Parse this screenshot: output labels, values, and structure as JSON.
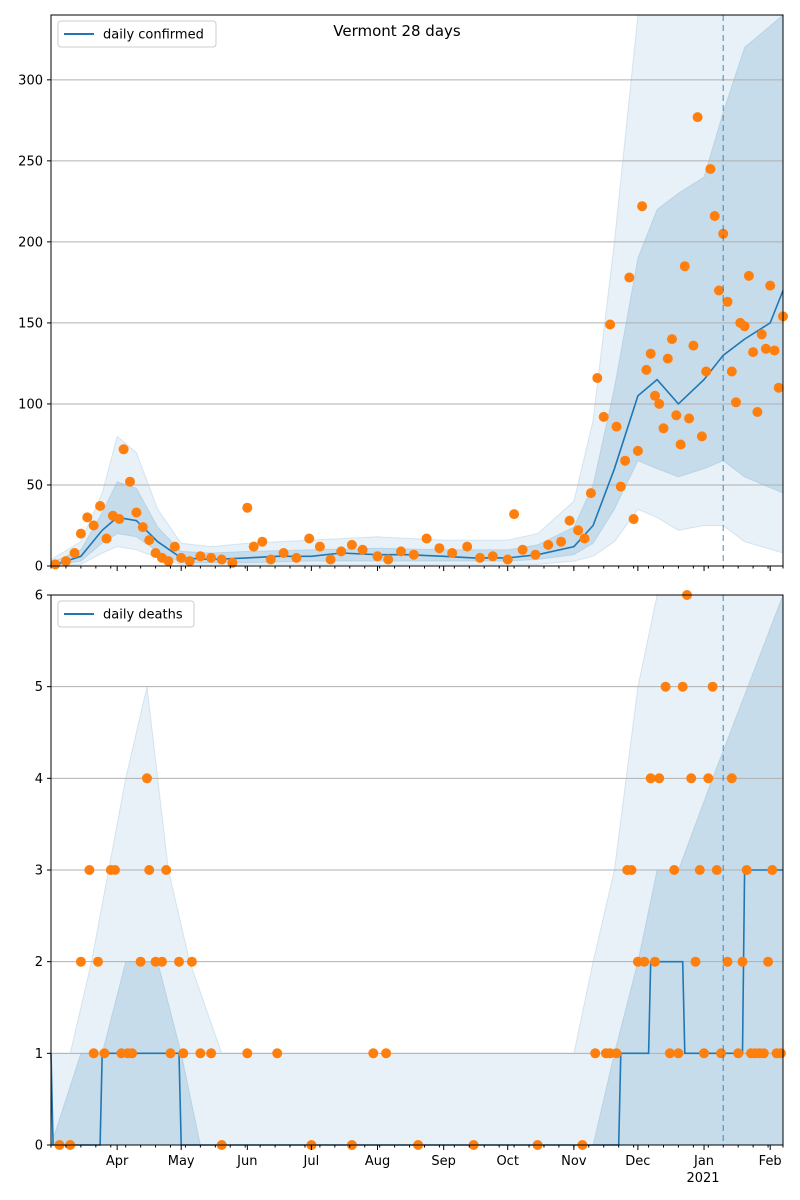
{
  "figure": {
    "title": "Vermont 28 days"
  },
  "colors": {
    "line": "#1f77b4",
    "band": "#1f77b4",
    "points": "#ff7f0e",
    "grid": "#b0b0b0"
  },
  "x_axis": {
    "start_date": "2020-03-01",
    "end_date": "2021-02-07",
    "month_ticks": [
      {
        "date": "2020-04-01",
        "label": "Apr"
      },
      {
        "date": "2020-05-01",
        "label": "May"
      },
      {
        "date": "2020-06-01",
        "label": "Jun"
      },
      {
        "date": "2020-07-01",
        "label": "Jul"
      },
      {
        "date": "2020-08-01",
        "label": "Aug"
      },
      {
        "date": "2020-09-01",
        "label": "Sep"
      },
      {
        "date": "2020-10-01",
        "label": "Oct"
      },
      {
        "date": "2020-11-01",
        "label": "Nov"
      },
      {
        "date": "2020-12-01",
        "label": "Dec"
      },
      {
        "date": "2021-01-01",
        "label": "Jan"
      },
      {
        "date": "2021-02-01",
        "label": "Feb"
      }
    ],
    "year_label": "2021",
    "forecast_start": "2021-01-10"
  },
  "chart_data": [
    {
      "type": "line",
      "title": "Vermont 28 days",
      "ylim": [
        0,
        340
      ],
      "yticks": [
        0,
        50,
        100,
        150,
        200,
        250,
        300
      ],
      "legend": "top-left",
      "grid": true,
      "series": [
        {
          "name": "daily confirmed",
          "type": "line",
          "x": [
            "2020-03-01",
            "2020-03-15",
            "2020-03-25",
            "2020-04-01",
            "2020-04-10",
            "2020-04-20",
            "2020-05-01",
            "2020-05-15",
            "2020-06-01",
            "2020-06-15",
            "2020-07-01",
            "2020-07-15",
            "2020-08-01",
            "2020-08-15",
            "2020-09-01",
            "2020-09-15",
            "2020-10-01",
            "2020-10-15",
            "2020-11-01",
            "2020-11-10",
            "2020-11-20",
            "2020-12-01",
            "2020-12-10",
            "2020-12-20",
            "2021-01-01",
            "2021-01-10",
            "2021-01-20",
            "2021-02-01",
            "2021-02-07"
          ],
          "y": [
            0,
            6,
            22,
            30,
            28,
            15,
            5,
            4,
            5,
            6,
            6,
            8,
            7,
            7,
            6,
            5,
            5,
            7,
            12,
            25,
            60,
            105,
            115,
            100,
            115,
            130,
            140,
            150,
            170
          ]
        },
        {
          "name": "",
          "type": "band",
          "x": [
            "2020-03-01",
            "2020-03-15",
            "2020-03-25",
            "2020-04-01",
            "2020-04-10",
            "2020-04-20",
            "2020-05-01",
            "2020-05-15",
            "2020-06-01",
            "2020-07-01",
            "2020-08-01",
            "2020-09-01",
            "2020-10-01",
            "2020-10-15",
            "2020-11-01",
            "2020-11-10",
            "2020-11-20",
            "2020-12-01",
            "2020-12-10",
            "2020-12-20",
            "2021-01-01",
            "2021-01-10",
            "2021-01-20",
            "2021-02-07"
          ],
          "lower": [
            0,
            1,
            8,
            12,
            10,
            5,
            1,
            1,
            1,
            1,
            1,
            1,
            1,
            1,
            3,
            6,
            15,
            35,
            30,
            22,
            25,
            25,
            15,
            8
          ],
          "upper": [
            4,
            15,
            45,
            80,
            70,
            35,
            14,
            12,
            14,
            16,
            18,
            16,
            16,
            20,
            40,
            90,
            200,
            340,
            340,
            340,
            340,
            340,
            340,
            340
          ]
        },
        {
          "name": "",
          "type": "band",
          "x": [
            "2020-03-01",
            "2020-03-15",
            "2020-03-25",
            "2020-04-01",
            "2020-04-10",
            "2020-04-20",
            "2020-05-01",
            "2020-05-15",
            "2020-06-01",
            "2020-07-01",
            "2020-08-01",
            "2020-09-01",
            "2020-10-01",
            "2020-10-15",
            "2020-11-01",
            "2020-11-10",
            "2020-11-20",
            "2020-12-01",
            "2020-12-10",
            "2020-12-20",
            "2021-01-01",
            "2021-01-10",
            "2021-01-20",
            "2021-02-07"
          ],
          "lower": [
            0,
            3,
            14,
            20,
            18,
            9,
            2,
            2,
            2,
            3,
            3,
            3,
            3,
            4,
            7,
            14,
            35,
            65,
            60,
            55,
            60,
            65,
            55,
            45
          ],
          "upper": [
            2,
            10,
            33,
            52,
            48,
            24,
            9,
            8,
            9,
            10,
            11,
            10,
            10,
            13,
            24,
            50,
            110,
            190,
            220,
            230,
            240,
            280,
            320,
            340
          ]
        },
        {
          "name": "",
          "type": "scatter",
          "x": [
            "2020-03-03",
            "2020-03-08",
            "2020-03-12",
            "2020-03-15",
            "2020-03-18",
            "2020-03-21",
            "2020-03-24",
            "2020-03-27",
            "2020-03-30",
            "2020-04-02",
            "2020-04-04",
            "2020-04-07",
            "2020-04-10",
            "2020-04-13",
            "2020-04-16",
            "2020-04-19",
            "2020-04-22",
            "2020-04-25",
            "2020-04-28",
            "2020-05-01",
            "2020-05-05",
            "2020-05-10",
            "2020-05-15",
            "2020-05-20",
            "2020-05-25",
            "2020-06-01",
            "2020-06-04",
            "2020-06-08",
            "2020-06-12",
            "2020-06-18",
            "2020-06-24",
            "2020-06-30",
            "2020-07-05",
            "2020-07-10",
            "2020-07-15",
            "2020-07-20",
            "2020-07-25",
            "2020-08-01",
            "2020-08-06",
            "2020-08-12",
            "2020-08-18",
            "2020-08-24",
            "2020-08-30",
            "2020-09-05",
            "2020-09-12",
            "2020-09-18",
            "2020-09-24",
            "2020-10-01",
            "2020-10-04",
            "2020-10-08",
            "2020-10-14",
            "2020-10-20",
            "2020-10-26",
            "2020-10-30",
            "2020-11-03",
            "2020-11-06",
            "2020-11-09",
            "2020-11-12",
            "2020-11-15",
            "2020-11-18",
            "2020-11-21",
            "2020-11-23",
            "2020-11-25",
            "2020-11-27",
            "2020-11-29",
            "2020-12-01",
            "2020-12-03",
            "2020-12-05",
            "2020-12-07",
            "2020-12-09",
            "2020-12-11",
            "2020-12-13",
            "2020-12-15",
            "2020-12-17",
            "2020-12-19",
            "2020-12-21",
            "2020-12-23",
            "2020-12-25",
            "2020-12-27",
            "2020-12-29",
            "2020-12-31",
            "2021-01-02",
            "2021-01-04",
            "2021-01-06",
            "2021-01-08",
            "2021-01-10",
            "2021-01-12",
            "2021-01-14",
            "2021-01-16",
            "2021-01-18",
            "2021-01-20",
            "2021-01-22",
            "2021-01-24",
            "2021-01-26",
            "2021-01-28",
            "2021-01-30",
            "2021-02-01",
            "2021-02-03",
            "2021-02-05",
            "2021-02-07"
          ],
          "y": [
            1,
            3,
            8,
            20,
            30,
            25,
            37,
            17,
            31,
            29,
            72,
            52,
            33,
            24,
            16,
            8,
            5,
            3,
            12,
            5,
            3,
            6,
            5,
            4,
            2,
            36,
            12,
            15,
            4,
            8,
            5,
            17,
            12,
            4,
            9,
            13,
            10,
            6,
            4,
            9,
            7,
            17,
            11,
            8,
            12,
            5,
            6,
            4,
            32,
            10,
            7,
            13,
            15,
            28,
            22,
            17,
            45,
            116,
            92,
            149,
            86,
            49,
            65,
            178,
            29,
            71,
            222,
            121,
            131,
            105,
            100,
            85,
            128,
            140,
            93,
            75,
            185,
            91,
            136,
            277,
            80,
            120,
            245,
            216,
            170,
            205,
            163,
            120,
            101,
            150,
            148,
            179,
            132,
            95,
            143,
            134,
            173,
            133,
            110,
            154
          ]
        }
      ]
    },
    {
      "type": "line",
      "title": "",
      "ylim": [
        0,
        6
      ],
      "yticks": [
        0,
        1,
        2,
        3,
        4,
        5,
        6
      ],
      "legend": "top-left",
      "grid": true,
      "series": [
        {
          "name": "daily deaths",
          "type": "line",
          "x": [
            "2020-03-01",
            "2020-03-02",
            "2020-03-24",
            "2020-03-25",
            "2020-04-30",
            "2020-05-01",
            "2020-11-22",
            "2020-11-23",
            "2020-12-06",
            "2020-12-07",
            "2020-12-22",
            "2020-12-23",
            "2021-01-19",
            "2021-01-20",
            "2021-02-07"
          ],
          "y": [
            1,
            0,
            0,
            1,
            1,
            0,
            0,
            1,
            1,
            2,
            2,
            1,
            1,
            3,
            3
          ]
        },
        {
          "name": "",
          "type": "band",
          "x": [
            "2020-03-01",
            "2020-03-10",
            "2020-03-20",
            "2020-04-05",
            "2020-04-15",
            "2020-04-25",
            "2020-05-05",
            "2020-05-20",
            "2020-06-01",
            "2020-11-01",
            "2020-11-10",
            "2020-11-20",
            "2020-12-01",
            "2020-12-10",
            "2021-02-07"
          ],
          "lower": [
            0,
            0,
            0,
            0,
            0,
            0,
            0,
            0,
            0,
            0,
            0,
            0,
            0,
            0,
            0
          ],
          "upper": [
            1,
            1,
            2,
            4,
            5,
            3,
            2,
            1,
            1,
            1,
            2,
            3,
            5,
            6,
            6
          ]
        },
        {
          "name": "",
          "type": "band",
          "x": [
            "2020-03-01",
            "2020-03-15",
            "2020-03-25",
            "2020-04-05",
            "2020-04-20",
            "2020-05-01",
            "2020-05-10",
            "2020-11-10",
            "2020-11-20",
            "2020-12-01",
            "2020-12-10",
            "2020-12-20",
            "2021-01-05",
            "2021-02-07"
          ],
          "lower": [
            0,
            0,
            0,
            0,
            0,
            0,
            0,
            0,
            0,
            0,
            0,
            0,
            0,
            0
          ],
          "upper": [
            0,
            1,
            1,
            2,
            2,
            1,
            0,
            0,
            1,
            2,
            3,
            3,
            4,
            6
          ]
        },
        {
          "name": "",
          "type": "scatter",
          "x": [
            "2020-03-05",
            "2020-03-10",
            "2020-03-15",
            "2020-03-19",
            "2020-03-21",
            "2020-03-23",
            "2020-03-26",
            "2020-03-29",
            "2020-03-31",
            "2020-04-03",
            "2020-04-06",
            "2020-04-08",
            "2020-04-12",
            "2020-04-15",
            "2020-04-16",
            "2020-04-19",
            "2020-04-22",
            "2020-04-24",
            "2020-04-26",
            "2020-04-30",
            "2020-05-02",
            "2020-05-06",
            "2020-05-10",
            "2020-05-15",
            "2020-05-20",
            "2020-06-01",
            "2020-06-15",
            "2020-07-01",
            "2020-07-20",
            "2020-07-30",
            "2020-08-05",
            "2020-08-20",
            "2020-09-15",
            "2020-10-15",
            "2020-11-05",
            "2020-11-11",
            "2020-11-16",
            "2020-11-18",
            "2020-11-21",
            "2020-11-26",
            "2020-11-28",
            "2020-12-01",
            "2020-12-04",
            "2020-12-07",
            "2020-12-09",
            "2020-12-11",
            "2020-12-14",
            "2020-12-16",
            "2020-12-18",
            "2020-12-20",
            "2020-12-22",
            "2020-12-24",
            "2020-12-26",
            "2020-12-28",
            "2020-12-30",
            "2021-01-01",
            "2021-01-03",
            "2021-01-05",
            "2021-01-07",
            "2021-01-09",
            "2021-01-12",
            "2021-01-14",
            "2021-01-17",
            "2021-01-19",
            "2021-01-21",
            "2021-01-23",
            "2021-01-25",
            "2021-01-27",
            "2021-01-29",
            "2021-01-31",
            "2021-02-02",
            "2021-02-04",
            "2021-02-06"
          ],
          "y": [
            0,
            0,
            2,
            3,
            1,
            2,
            1,
            3,
            3,
            1,
            1,
            1,
            2,
            4,
            3,
            2,
            2,
            3,
            1,
            2,
            1,
            2,
            1,
            1,
            0,
            1,
            1,
            0,
            0,
            1,
            1,
            0,
            0,
            0,
            0,
            1,
            1,
            1,
            1,
            3,
            3,
            2,
            2,
            4,
            2,
            4,
            5,
            1,
            3,
            1,
            5,
            6,
            4,
            2,
            3,
            1,
            4,
            5,
            3,
            1,
            2,
            4,
            1,
            2,
            3,
            1,
            1,
            1,
            1,
            2,
            3,
            1,
            1
          ]
        }
      ]
    }
  ]
}
